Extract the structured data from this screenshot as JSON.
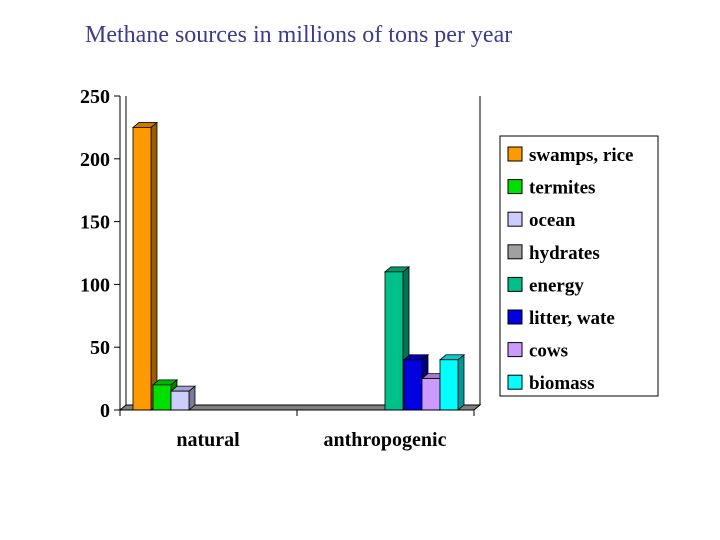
{
  "chart_data": {
    "type": "bar",
    "title": "Methane sources in millions of tons per year",
    "xlabel": "",
    "ylabel": "",
    "categories": [
      "natural",
      "anthropogenic"
    ],
    "ylim": [
      0,
      250
    ],
    "yticks": [
      0,
      50,
      100,
      150,
      200,
      250
    ],
    "grid": false,
    "legend_position": "right",
    "series": [
      {
        "name": "swamps, rice",
        "color": "#ff9900",
        "values": [
          225,
          0
        ]
      },
      {
        "name": "termites",
        "color": "#00e000",
        "values": [
          20,
          0
        ]
      },
      {
        "name": "ocean",
        "color": "#ccccff",
        "values": [
          15,
          0
        ]
      },
      {
        "name": "hydrates",
        "color": "#a0a0a0",
        "values": [
          0,
          0
        ]
      },
      {
        "name": "energy",
        "color": "#00c08a",
        "values": [
          0,
          110
        ]
      },
      {
        "name": "litter, wate",
        "color": "#0000e0",
        "values": [
          0,
          40
        ]
      },
      {
        "name": "cows",
        "color": "#cc99ff",
        "values": [
          0,
          25
        ]
      },
      {
        "name": "biomass",
        "color": "#00ffff",
        "values": [
          0,
          40
        ]
      }
    ]
  }
}
